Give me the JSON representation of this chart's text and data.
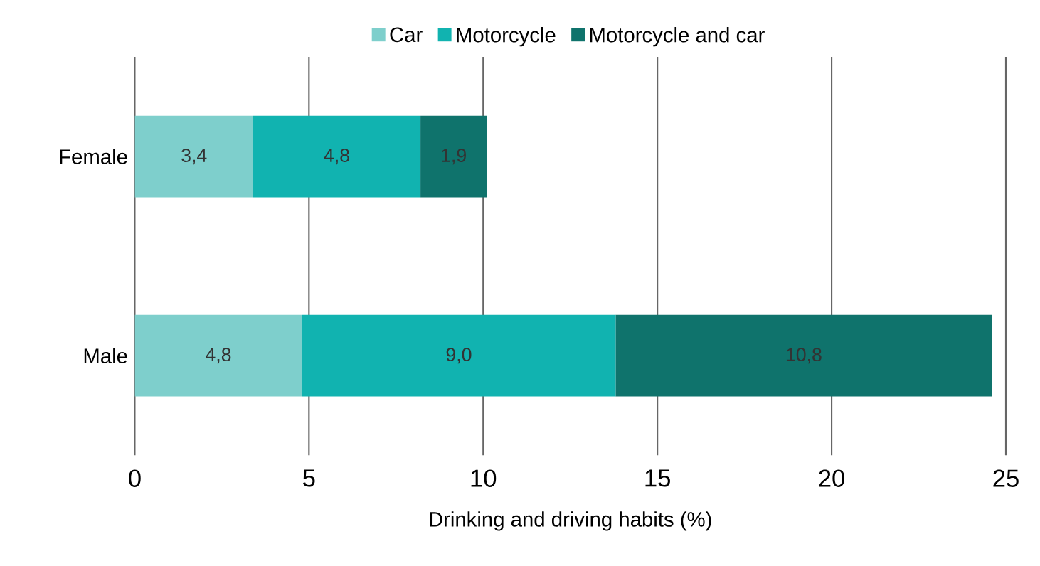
{
  "chart_data": {
    "type": "bar",
    "orientation": "horizontal",
    "stacked": true,
    "xlabel": "Drinking and driving habits (%)",
    "categories": [
      "Female",
      "Male"
    ],
    "series": [
      {
        "name": "Car",
        "color": "#7ecfcc",
        "values": [
          3.4,
          4.8
        ],
        "value_labels": [
          "3,4",
          "4,8"
        ]
      },
      {
        "name": "Motorcycle",
        "color": "#11b3b0",
        "values": [
          4.8,
          9.0
        ],
        "value_labels": [
          "4,8",
          "9,0"
        ]
      },
      {
        "name": "Motorcycle and car",
        "color": "#0f736c",
        "values": [
          1.9,
          10.8
        ],
        "value_labels": [
          "1,9",
          "10,8"
        ]
      }
    ],
    "xlim": [
      0,
      25
    ],
    "xticks": [
      0,
      5,
      10,
      15,
      20,
      25
    ],
    "grid": "x",
    "legend": "top"
  }
}
